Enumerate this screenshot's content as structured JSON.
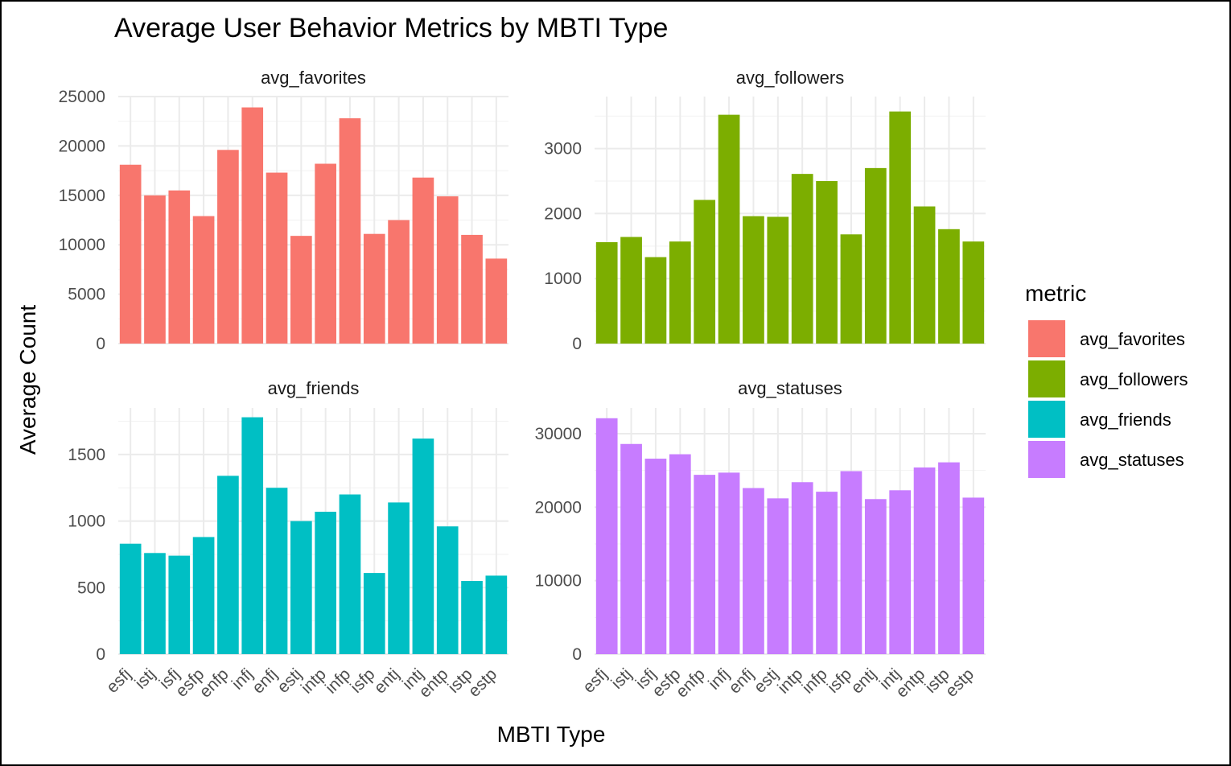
{
  "chart_data": {
    "type": "bar",
    "title": "Average User Behavior Metrics by MBTI Type",
    "xlabel": "MBTI Type",
    "ylabel": "Average Count",
    "categories": [
      "esfj",
      "istj",
      "isfj",
      "esfp",
      "enfp",
      "infj",
      "enfj",
      "estj",
      "intp",
      "infp",
      "isfp",
      "entj",
      "intj",
      "entp",
      "istp",
      "estp"
    ],
    "grid": true,
    "legend": {
      "title": "metric",
      "position": "right",
      "entries": [
        "avg_favorites",
        "avg_followers",
        "avg_friends",
        "avg_statuses"
      ]
    },
    "facets": [
      {
        "name": "avg_favorites",
        "color": "#F8766D",
        "ylim": [
          0,
          25000
        ],
        "yticks": [
          0,
          5000,
          10000,
          15000,
          20000,
          25000
        ],
        "values": [
          18100,
          15000,
          15500,
          12900,
          19600,
          23900,
          17300,
          10900,
          18200,
          22800,
          11100,
          12500,
          16800,
          14900,
          11000,
          8600
        ]
      },
      {
        "name": "avg_followers",
        "color": "#7CAE00",
        "ylim": [
          0,
          3800
        ],
        "yticks": [
          0,
          1000,
          2000,
          3000
        ],
        "values": [
          1560,
          1640,
          1330,
          1570,
          2210,
          3520,
          1960,
          1950,
          2610,
          2500,
          1680,
          2700,
          3570,
          2110,
          1760,
          1570
        ]
      },
      {
        "name": "avg_friends",
        "color": "#00BFC4",
        "ylim": [
          0,
          1850
        ],
        "yticks": [
          0,
          500,
          1000,
          1500
        ],
        "values": [
          830,
          760,
          740,
          880,
          1340,
          1780,
          1250,
          1000,
          1070,
          1200,
          610,
          1140,
          1620,
          960,
          550,
          590
        ]
      },
      {
        "name": "avg_statuses",
        "color": "#C77CFF",
        "ylim": [
          0,
          33500
        ],
        "yticks": [
          0,
          10000,
          20000,
          30000
        ],
        "values": [
          32100,
          28600,
          26600,
          27200,
          24400,
          24700,
          22600,
          21200,
          23400,
          22100,
          24900,
          21100,
          22300,
          25400,
          26100,
          21300
        ]
      }
    ]
  }
}
